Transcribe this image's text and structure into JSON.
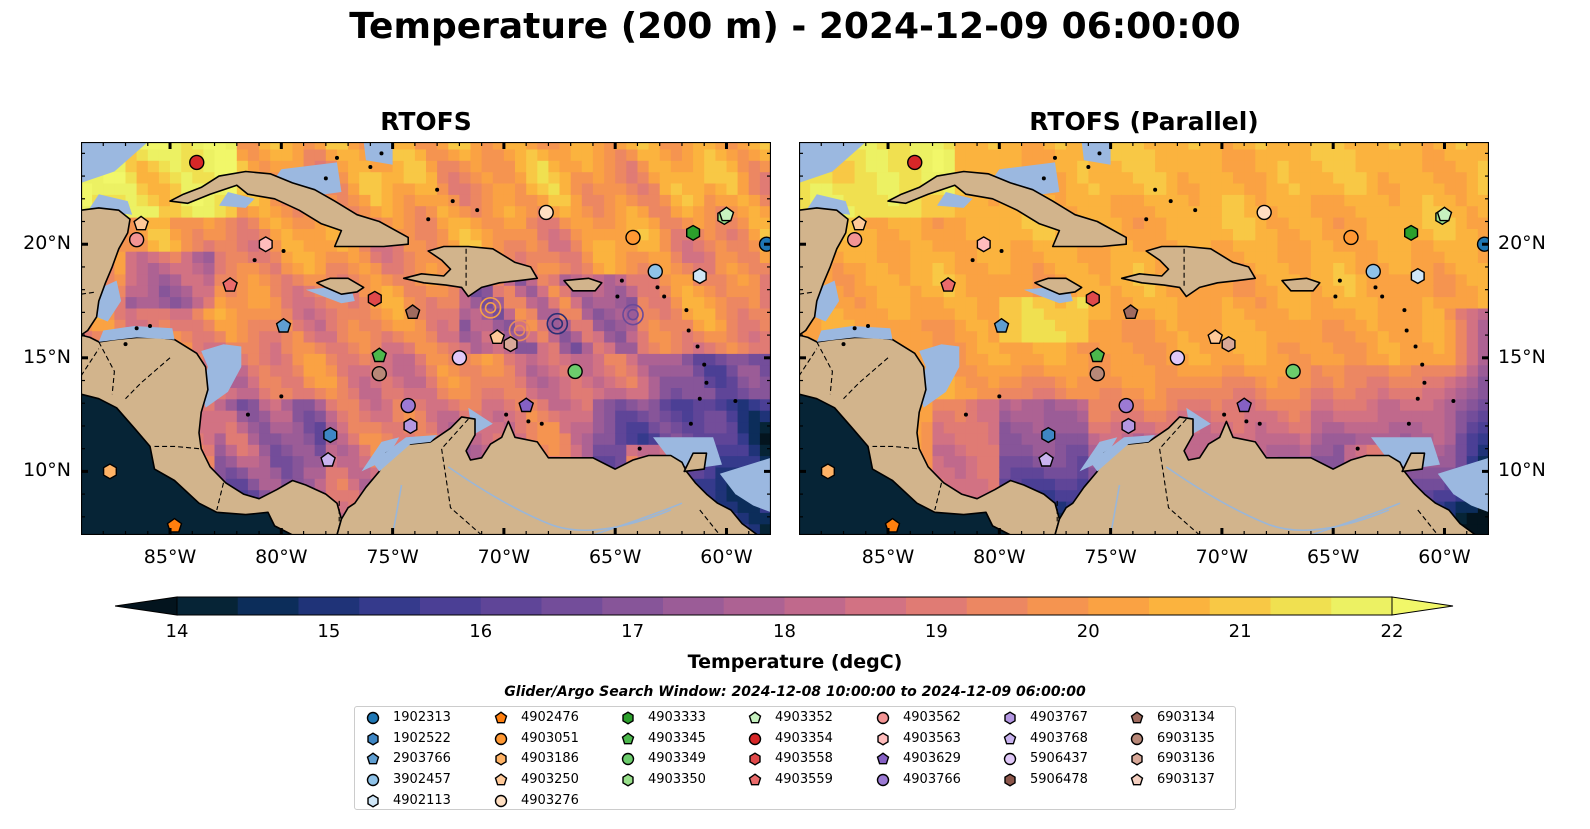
{
  "title": "Temperature (200 m) - 2024-12-09 06:00:00",
  "panels": [
    {
      "title": "RTOFS",
      "variant": "standard"
    },
    {
      "title": "RTOFS (Parallel)",
      "variant": "parallel"
    }
  ],
  "lon_ticks": [
    "85°W",
    "80°W",
    "75°W",
    "70°W",
    "65°W",
    "60°W"
  ],
  "lat_ticks": [
    "20°N",
    "15°N",
    "10°N"
  ],
  "colorbar": {
    "label": "Temperature (degC)",
    "ticks": [
      "14",
      "15",
      "16",
      "17",
      "18",
      "19",
      "20",
      "21",
      "22"
    ],
    "colors": [
      "#062436",
      "#0c2d5a",
      "#1f3378",
      "#353a8c",
      "#4b3f95",
      "#5f4598",
      "#734d9a",
      "#875599",
      "#9b5c97",
      "#ad6293",
      "#c0698c",
      "#d27283",
      "#e07b74",
      "#ec8762",
      "#f59450",
      "#faa243",
      "#fbb33e",
      "#f8c845",
      "#f0e050",
      "#ecf163"
    ],
    "under_color": "#03141e",
    "over_color": "#f1f769"
  },
  "search_window": "Glider/Argo Search Window: 2024-12-08 10:00:00 to 2024-12-09 06:00:00",
  "legend": [
    {
      "id": "1902313",
      "marker": "circle",
      "color": "#1f77b4"
    },
    {
      "id": "1902522",
      "marker": "hexagon",
      "color": "#3e86c4"
    },
    {
      "id": "2903766",
      "marker": "pentagon",
      "color": "#5f9ed1"
    },
    {
      "id": "3902457",
      "marker": "circle",
      "color": "#8fc2e8"
    },
    {
      "id": "4902113",
      "marker": "hexagon",
      "color": "#cfe6f7"
    },
    {
      "id": "4902476",
      "marker": "pentagon",
      "color": "#ff7f0e"
    },
    {
      "id": "4903051",
      "marker": "circle",
      "color": "#ff9833"
    },
    {
      "id": "4903186",
      "marker": "hexagon",
      "color": "#ffb366"
    },
    {
      "id": "4903250",
      "marker": "pentagon",
      "color": "#ffc999"
    },
    {
      "id": "4903276",
      "marker": "circle",
      "color": "#ffdfc2"
    },
    {
      "id": "4903333",
      "marker": "hexagon",
      "color": "#2ca02c"
    },
    {
      "id": "4903345",
      "marker": "pentagon",
      "color": "#4cb84c"
    },
    {
      "id": "4903349",
      "marker": "circle",
      "color": "#6ccc6c"
    },
    {
      "id": "4903350",
      "marker": "hexagon",
      "color": "#98df8a"
    },
    {
      "id": "4903352",
      "marker": "pentagon",
      "color": "#c7f2c0"
    },
    {
      "id": "4903354",
      "marker": "circle",
      "color": "#d62728"
    },
    {
      "id": "4903558",
      "marker": "hexagon",
      "color": "#e0494a"
    },
    {
      "id": "4903559",
      "marker": "pentagon",
      "color": "#ea6b6b"
    },
    {
      "id": "4903562",
      "marker": "circle",
      "color": "#f39494"
    },
    {
      "id": "4903563",
      "marker": "hexagon",
      "color": "#ffbcbc"
    },
    {
      "id": "4903629",
      "marker": "pentagon",
      "color": "#8560c4"
    },
    {
      "id": "4903766",
      "marker": "circle",
      "color": "#9c7ad4"
    },
    {
      "id": "4903767",
      "marker": "hexagon",
      "color": "#b497e2"
    },
    {
      "id": "4903768",
      "marker": "pentagon",
      "color": "#c9b3ef"
    },
    {
      "id": "5906437",
      "marker": "circle",
      "color": "#e0c8f8"
    },
    {
      "id": "5906478",
      "marker": "hexagon",
      "color": "#8c564b"
    },
    {
      "id": "6903134",
      "marker": "pentagon",
      "color": "#a06b5f"
    },
    {
      "id": "6903135",
      "marker": "circle",
      "color": "#b88878"
    },
    {
      "id": "6903136",
      "marker": "hexagon",
      "color": "#d8a898"
    },
    {
      "id": "6903137",
      "marker": "pentagon",
      "color": "#f4cfc0"
    }
  ],
  "map_markers": [
    {
      "lon": -86.3,
      "lat": 20.9,
      "marker": "pentagon",
      "color": "#ffc999"
    },
    {
      "lon": -86.5,
      "lat": 20.2,
      "marker": "circle",
      "color": "#f39494"
    },
    {
      "lon": -83.8,
      "lat": 23.6,
      "marker": "circle",
      "color": "#d62728"
    },
    {
      "lon": -80.7,
      "lat": 20.0,
      "marker": "hexagon",
      "color": "#ffbcbc"
    },
    {
      "lon": -82.3,
      "lat": 18.2,
      "marker": "pentagon",
      "color": "#ea6b6b"
    },
    {
      "lon": -79.9,
      "lat": 16.4,
      "marker": "pentagon",
      "color": "#5f9ed1"
    },
    {
      "lon": -75.8,
      "lat": 17.6,
      "marker": "hexagon",
      "color": "#e0494a"
    },
    {
      "lon": -74.1,
      "lat": 17.0,
      "marker": "pentagon",
      "color": "#a06b5f"
    },
    {
      "lon": -75.6,
      "lat": 15.1,
      "marker": "pentagon",
      "color": "#4cb84c"
    },
    {
      "lon": -75.6,
      "lat": 14.3,
      "marker": "circle",
      "color": "#b88878"
    },
    {
      "lon": -72.0,
      "lat": 15.0,
      "marker": "circle",
      "color": "#e0c8f8"
    },
    {
      "lon": -70.3,
      "lat": 15.9,
      "marker": "pentagon",
      "color": "#ffc999"
    },
    {
      "lon": -69.7,
      "lat": 15.6,
      "marker": "hexagon",
      "color": "#d8a898"
    },
    {
      "lon": -68.1,
      "lat": 21.4,
      "marker": "circle",
      "color": "#ffdfc2"
    },
    {
      "lon": -64.2,
      "lat": 20.3,
      "marker": "circle",
      "color": "#ff9833"
    },
    {
      "lon": -61.5,
      "lat": 20.5,
      "marker": "hexagon",
      "color": "#2ca02c"
    },
    {
      "lon": -60.1,
      "lat": 21.2,
      "marker": "hexagon",
      "color": "#98df8a"
    },
    {
      "lon": -60.0,
      "lat": 21.3,
      "marker": "pentagon",
      "color": "#c7f2c0"
    },
    {
      "lon": -58.2,
      "lat": 20.0,
      "marker": "circle",
      "color": "#1f77b4"
    },
    {
      "lon": -63.2,
      "lat": 18.8,
      "marker": "circle",
      "color": "#8fc2e8"
    },
    {
      "lon": -61.2,
      "lat": 18.6,
      "marker": "hexagon",
      "color": "#cfe6f7"
    },
    {
      "lon": -66.8,
      "lat": 14.4,
      "marker": "circle",
      "color": "#6ccc6c"
    },
    {
      "lon": -69.0,
      "lat": 12.9,
      "marker": "pentagon",
      "color": "#8560c4"
    },
    {
      "lon": -74.3,
      "lat": 12.9,
      "marker": "circle",
      "color": "#9c7ad4"
    },
    {
      "lon": -74.2,
      "lat": 12.0,
      "marker": "hexagon",
      "color": "#b497e2"
    },
    {
      "lon": -77.8,
      "lat": 11.6,
      "marker": "hexagon",
      "color": "#3e86c4"
    },
    {
      "lon": -77.9,
      "lat": 10.5,
      "marker": "pentagon",
      "color": "#c9b3ef"
    },
    {
      "lon": -87.7,
      "lat": 10.0,
      "marker": "hexagon",
      "color": "#ffb366"
    },
    {
      "lon": -89.4,
      "lat": 7.6,
      "marker": "hexagon",
      "color": "#8c564b"
    },
    {
      "lon": -84.8,
      "lat": 7.6,
      "marker": "pentagon",
      "color": "#ff7f0e"
    }
  ]
}
